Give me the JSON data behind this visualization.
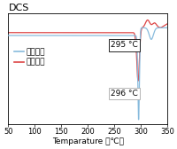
{
  "title": "DCS",
  "xlabel": "Temparature （℃）",
  "xlim": [
    50,
    350
  ],
  "ylim": [
    -1.0,
    0.15
  ],
  "legend_labels": [
    "：粉碎前",
    "：粉碎后"
  ],
  "line1_color": "#88bbdd",
  "line2_color": "#dd4444",
  "annotation1": "295 °C",
  "annotation2": "296 °C",
  "background": "#ffffff",
  "title_fontsize": 8,
  "label_fontsize": 6.5,
  "tick_fontsize": 6,
  "legend_fontsize": 6.5
}
